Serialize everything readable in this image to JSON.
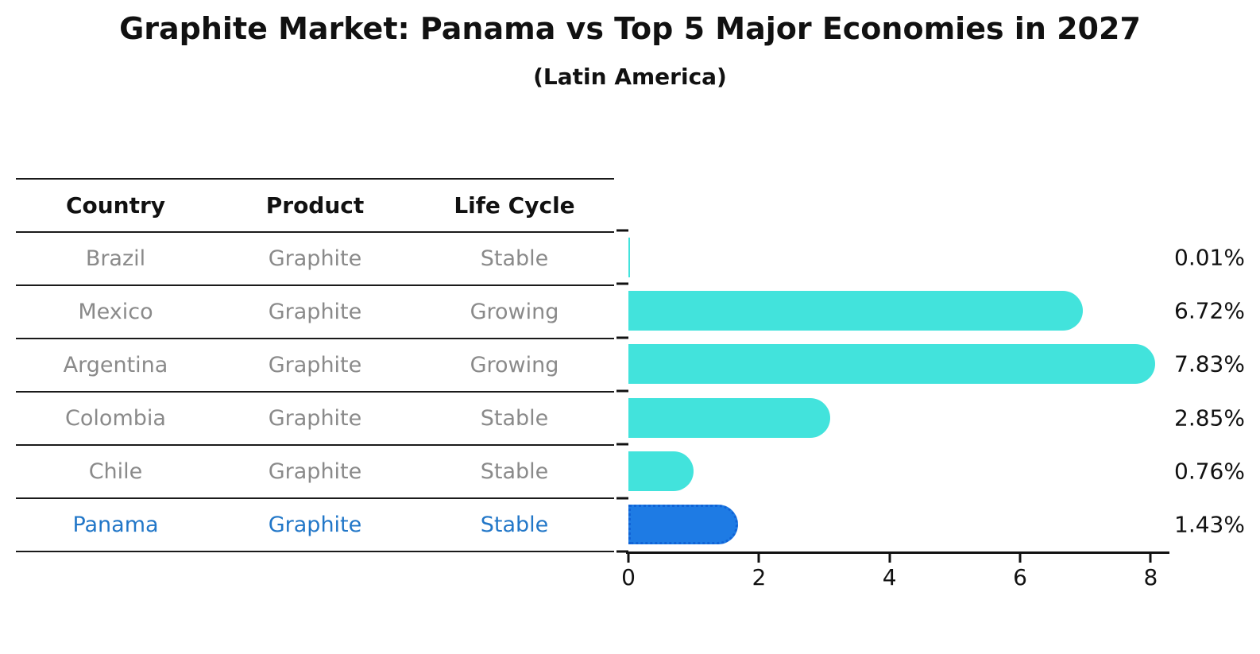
{
  "chart_data": {
    "type": "bar",
    "title": "Graphite Market: Panama vs Top 5 Major Economies in 2027",
    "subtitle": "(Latin America)",
    "categories": [
      "Brazil",
      "Mexico",
      "Argentina",
      "Colombia",
      "Chile",
      "Panama"
    ],
    "values": [
      0.01,
      6.72,
      7.83,
      2.85,
      0.76,
      1.43
    ],
    "value_labels": [
      "0.01%",
      "6.72%",
      "7.83%",
      "2.85%",
      "0.76%",
      "1.43%"
    ],
    "xlabel": "",
    "ylabel": "",
    "xlim": [
      0,
      8.25
    ],
    "xticks": [
      0,
      2,
      4,
      6,
      8
    ],
    "orientation": "horizontal",
    "grid": false,
    "legend": "none",
    "bar_color": "#42e3dc",
    "highlight_color": "#1e7be4",
    "highlight_index": 5
  },
  "table": {
    "headers": [
      "Country",
      "Product",
      "Life Cycle"
    ],
    "rows": [
      {
        "country": "Brazil",
        "product": "Graphite",
        "life_cycle": "Stable"
      },
      {
        "country": "Mexico",
        "product": "Graphite",
        "life_cycle": "Growing"
      },
      {
        "country": "Argentina",
        "product": "Graphite",
        "life_cycle": "Growing"
      },
      {
        "country": "Colombia",
        "product": "Graphite",
        "life_cycle": "Stable"
      },
      {
        "country": "Chile",
        "product": "Graphite",
        "life_cycle": "Stable"
      },
      {
        "country": "Panama",
        "product": "Graphite",
        "life_cycle": "Stable"
      }
    ],
    "highlight_row": "Panama"
  },
  "colors": {
    "background": "#ffffff",
    "table_text": "#8a8a8a",
    "table_header_text": "#111111",
    "highlight_text": "#2277c8",
    "axis": "#111111",
    "bar": "#42e3dc",
    "highlight_bar": "#1e7be4",
    "highlight_bar_border": "#1063d6"
  }
}
